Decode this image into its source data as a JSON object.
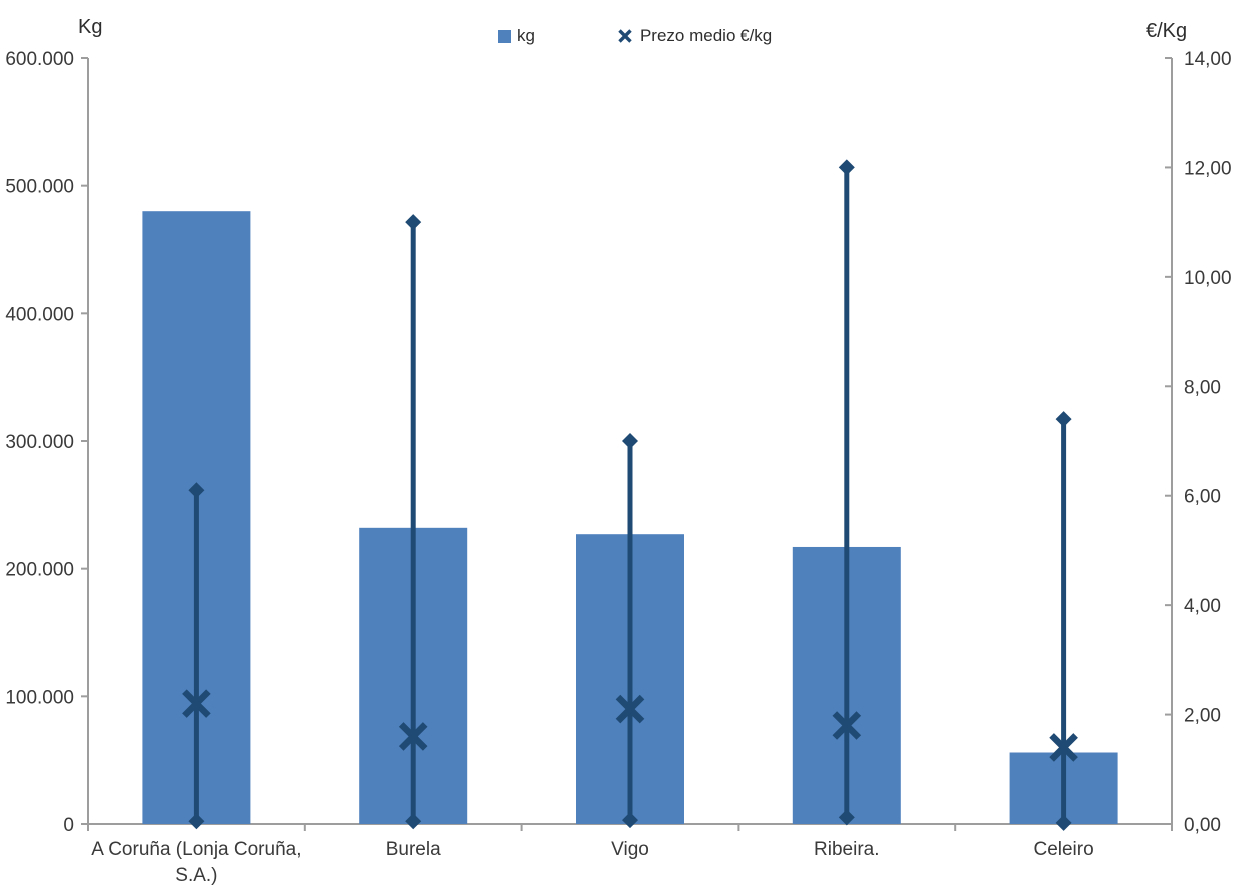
{
  "chart_data": {
    "type": "combo",
    "subtype": "bar + hi-lo range with mean markers",
    "categories": [
      "A Coruña (Lonja Coruña, S.A.)",
      "Burela",
      "Vigo",
      "Ribeira.",
      "Celeiro"
    ],
    "category_label_lines": [
      [
        "A Coruña (Lonja Coruña,",
        "S.A.)"
      ],
      [
        "Burela"
      ],
      [
        "Vigo"
      ],
      [
        "Ribeira."
      ],
      [
        "Celeiro"
      ]
    ],
    "series": [
      {
        "name": "kg",
        "type": "bar",
        "axis": "left",
        "color": "#4F81BD",
        "values": [
          480000,
          232000,
          227000,
          217000,
          56000
        ]
      },
      {
        "name": "Prezo medio €/kg",
        "type": "hilo-mean",
        "axis": "right",
        "color": "#1F4A73",
        "marker_extremes": "diamond",
        "marker_mean": "x",
        "max": [
          6.1,
          11.0,
          7.0,
          12.0,
          7.4
        ],
        "min": [
          0.05,
          0.05,
          0.07,
          0.12,
          0.02
        ],
        "mean": [
          2.2,
          1.6,
          2.1,
          1.8,
          1.4
        ]
      }
    ],
    "left_axis": {
      "title": "Kg",
      "range": [
        0,
        600000
      ],
      "ticks": [
        {
          "label": "600.000",
          "value": 600000
        },
        {
          "label": "500.000",
          "value": 500000
        },
        {
          "label": "400.000",
          "value": 400000
        },
        {
          "label": "300.000",
          "value": 300000
        },
        {
          "label": "200.000",
          "value": 200000
        },
        {
          "label": "100.000",
          "value": 100000
        },
        {
          "label": "0",
          "value": 0
        }
      ]
    },
    "right_axis": {
      "title": "€/Kg",
      "range": [
        0,
        14
      ],
      "ticks": [
        {
          "label": "14,00",
          "value": 14
        },
        {
          "label": "12,00",
          "value": 12
        },
        {
          "label": "10,00",
          "value": 10
        },
        {
          "label": "8,00",
          "value": 8
        },
        {
          "label": "6,00",
          "value": 6
        },
        {
          "label": "4,00",
          "value": 4
        },
        {
          "label": "2,00",
          "value": 2
        },
        {
          "label": "0,00",
          "value": 0
        }
      ]
    },
    "grid": false,
    "legend_position": "top"
  },
  "colors": {
    "bar": "#4F81BD",
    "price_line": "#1F4A73",
    "axis_line": "#9D9D9D",
    "tick_text": "#3A3A3A"
  }
}
